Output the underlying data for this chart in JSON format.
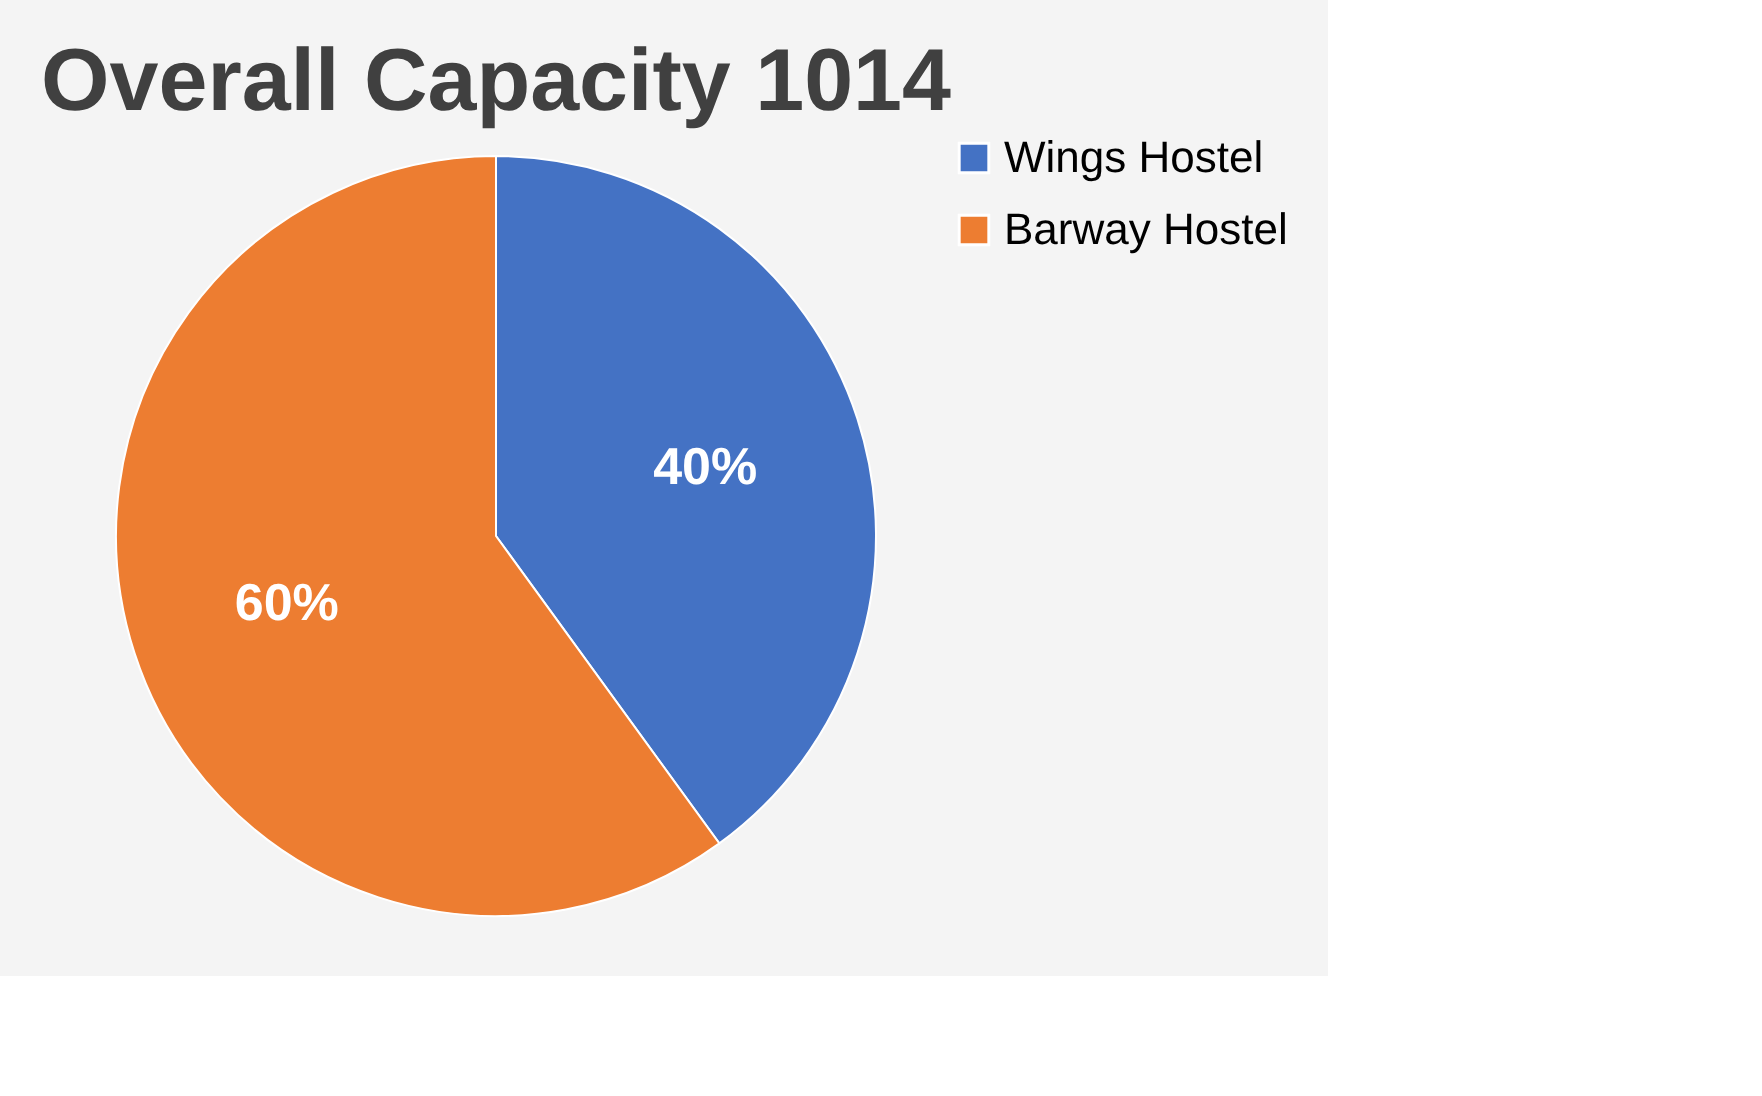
{
  "chart_data": {
    "type": "pie",
    "title": "Overall Capacity 1014",
    "categories": [
      "Wings Hostel",
      "Barway Hostel"
    ],
    "values": [
      40,
      60
    ],
    "colors": [
      "#4472c4",
      "#ed7d31"
    ],
    "value_labels": [
      "40%",
      "60%"
    ],
    "legend": "right"
  }
}
